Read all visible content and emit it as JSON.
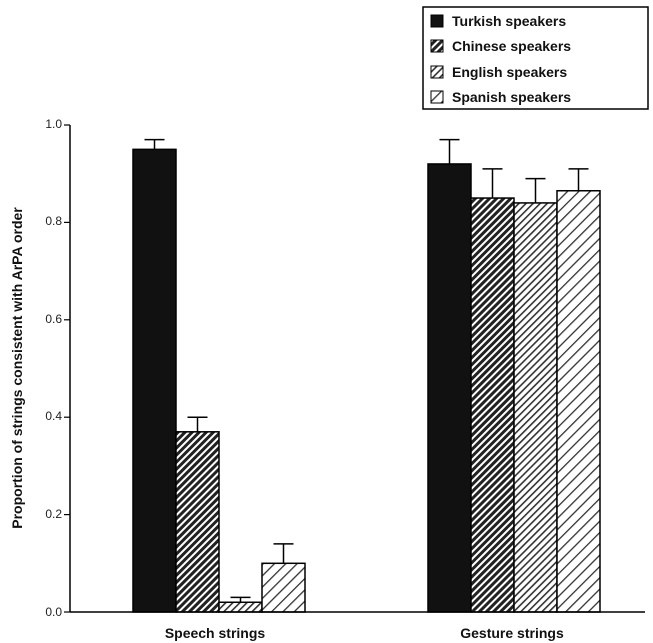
{
  "chart_data": {
    "type": "bar",
    "categories": [
      "Speech strings",
      "Gesture strings"
    ],
    "series": [
      {
        "name": "Turkish speakers",
        "values": [
          0.95,
          0.92
        ],
        "errors": [
          0.02,
          0.05
        ],
        "pattern": "solid"
      },
      {
        "name": "Chinese speakers",
        "values": [
          0.37,
          0.85
        ],
        "errors": [
          0.03,
          0.06
        ],
        "pattern": "dense-hatch"
      },
      {
        "name": "English speakers",
        "values": [
          0.02,
          0.84
        ],
        "errors": [
          0.01,
          0.05
        ],
        "pattern": "medium-hatch"
      },
      {
        "name": "Spanish speakers",
        "values": [
          0.1,
          0.865
        ],
        "errors": [
          0.04,
          0.045
        ],
        "pattern": "light-hatch"
      }
    ],
    "ylabel": "Proportion of strings consistent with ArPA order",
    "xlabel": "",
    "ylim": [
      0,
      1.0
    ],
    "yticks": [
      "0.0",
      "0.2",
      "0.4",
      "0.6",
      "0.8",
      "1.0"
    ],
    "legend_position": "top-right",
    "grid": false,
    "colors": {
      "bar_stroke": "#000000",
      "solid": "#111111",
      "hatch": "#222222",
      "axis": "#000000"
    }
  }
}
